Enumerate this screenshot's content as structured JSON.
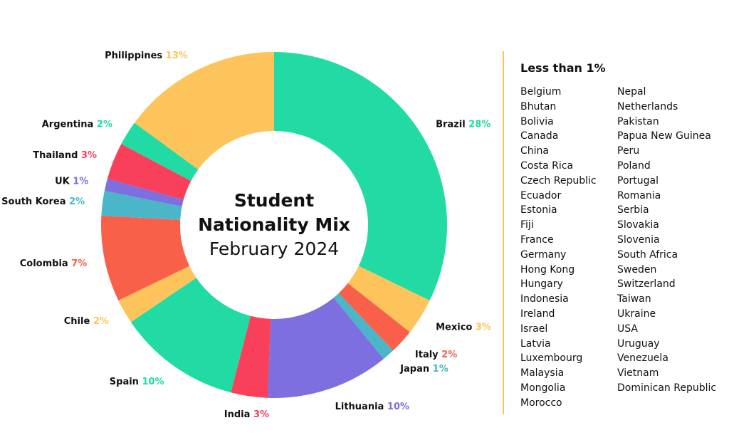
{
  "chart_data": {
    "type": "donut",
    "title": "Student Nationality Mix",
    "subtitle": "February 2024",
    "slices": [
      {
        "label": "Brazil",
        "value": 28,
        "pct_label": "28%",
        "color": "#22dba4"
      },
      {
        "label": "Mexico",
        "value": 3,
        "pct_label": "3%",
        "color": "#fec45c"
      },
      {
        "label": "Italy",
        "value": 2,
        "pct_label": "2%",
        "color": "#f9604a"
      },
      {
        "label": "Japan",
        "value": 1,
        "pct_label": "1%",
        "color": "#4bb6c7"
      },
      {
        "label": "Lithuania",
        "value": 10,
        "pct_label": "10%",
        "color": "#7e6fe0"
      },
      {
        "label": "India",
        "value": 3,
        "pct_label": "3%",
        "color": "#f8405a"
      },
      {
        "label": "Spain",
        "value": 10,
        "pct_label": "10%",
        "color": "#22dba4"
      },
      {
        "label": "Chile",
        "value": 2,
        "pct_label": "2%",
        "color": "#fec45c"
      },
      {
        "label": "Colombia",
        "value": 7,
        "pct_label": "7%",
        "color": "#f9604a"
      },
      {
        "label": "South Korea",
        "value": 2,
        "pct_label": "2%",
        "color": "#4bb6c7"
      },
      {
        "label": "UK",
        "value": 1,
        "pct_label": "1%",
        "color": "#7e6fe0"
      },
      {
        "label": "Thailand",
        "value": 3,
        "pct_label": "3%",
        "color": "#f8405a"
      },
      {
        "label": "Argentina",
        "value": 2,
        "pct_label": "2%",
        "color": "#22dba4"
      },
      {
        "label": "Philippines",
        "value": 13,
        "pct_label": "13%",
        "color": "#fec45c"
      }
    ]
  },
  "less_than_one": {
    "title": "Less than 1%",
    "column_1": [
      "Belgium",
      "Bhutan",
      "Bolivia",
      "Canada",
      "China",
      "Costa Rica",
      "Czech Republic",
      "Ecuador",
      "Estonia",
      "Fiji",
      "France",
      "Germany",
      "Hong Kong",
      "Hungary",
      "Indonesia",
      "Ireland",
      "Israel",
      "Latvia",
      "Luxembourg",
      "Malaysia",
      "Mongolia",
      "Morocco"
    ],
    "column_2": [
      "Nepal",
      "Netherlands",
      "Pakistan",
      "Papua New Guinea",
      "Peru",
      "Poland",
      "Portugal",
      "Romania",
      "Serbia",
      "Slovakia",
      "Slovenia",
      "South Africa",
      "Sweden",
      "Switzerland",
      "Taiwan",
      "Ukraine",
      "USA",
      "Uruguay",
      "Venezuela",
      "Vietnam",
      "Dominican Republic"
    ]
  },
  "colors": {
    "divider": "#f7c35a",
    "text": "#111111"
  }
}
